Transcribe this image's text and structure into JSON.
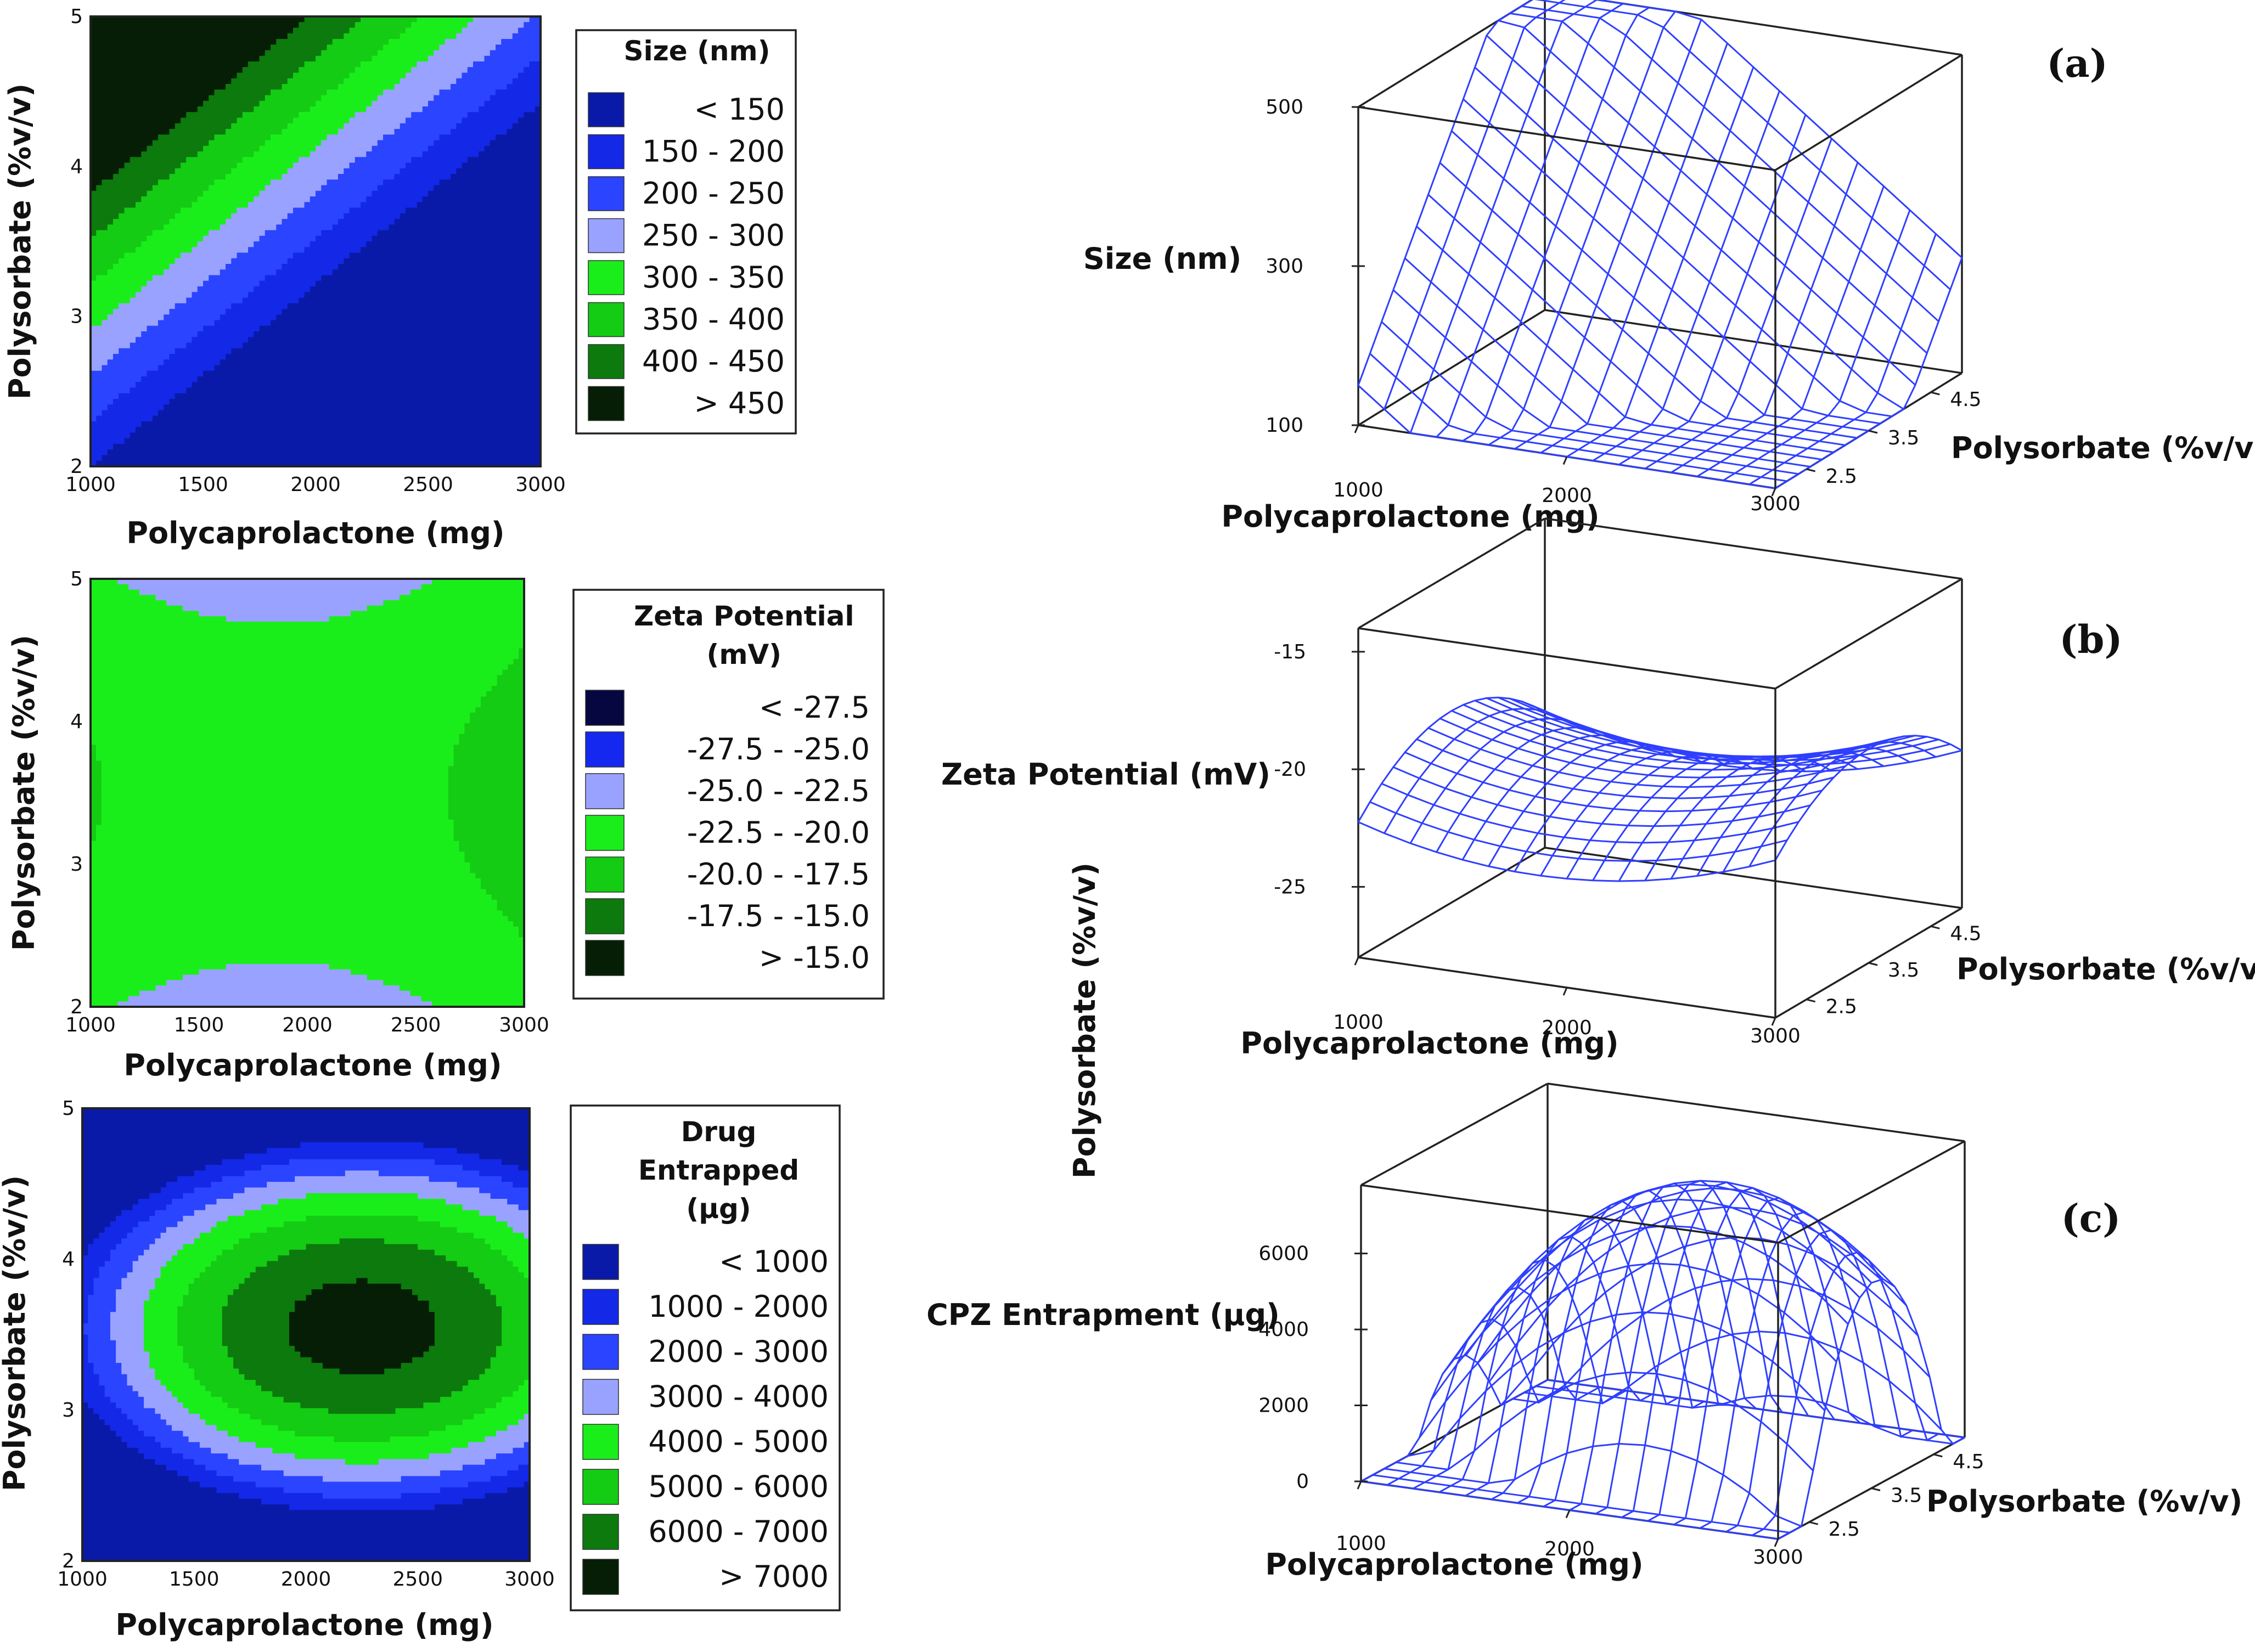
{
  "figure": {
    "shared_ylabel": "Polysorbate (%v/v)"
  },
  "chart_data": [
    {
      "id": "a-contour",
      "type": "heatmap",
      "subtype": "contour",
      "xlabel": "Polycaprolactone (mg)",
      "ylabel": "Polysorbate (%v/v)",
      "xlim": [
        1000,
        3000
      ],
      "ylim": [
        2,
        5
      ],
      "xticks": [
        "1000",
        "1500",
        "2000",
        "2500",
        "3000"
      ],
      "yticks": [
        "2",
        "3",
        "4",
        "5"
      ],
      "model": {
        "kind": "linear",
        "intercept": 150,
        "x_coef": -0.2,
        "y_coef": 165,
        "x_center": 1000,
        "y_center": 2
      },
      "legend": {
        "title": [
          "Size (nm)"
        ],
        "entries": [
          {
            "label": "< 150",
            "color": "#0a1aa8"
          },
          {
            "label": "150  -  200",
            "color": "#1428e8"
          },
          {
            "label": "200  -  250",
            "color": "#2a44ff"
          },
          {
            "label": "250  -  300",
            "color": "#9aa2ff"
          },
          {
            "label": "300  -  350",
            "color": "#1aee1a"
          },
          {
            "label": "350  -  400",
            "color": "#14cc14"
          },
          {
            "label": "400  -  450",
            "color": "#0c7a0c"
          },
          {
            "label": "> 450",
            "color": "#051e05"
          }
        ],
        "thresholds": [
          150,
          200,
          250,
          300,
          350,
          400,
          450
        ]
      }
    },
    {
      "id": "b-contour",
      "type": "heatmap",
      "subtype": "contour",
      "xlabel": "Polycaprolactone (mg)",
      "ylabel": "Polysorbate (%v/v)",
      "xlim": [
        1000,
        3000
      ],
      "ylim": [
        2,
        5
      ],
      "xticks": [
        "1000",
        "1500",
        "2000",
        "2500",
        "3000"
      ],
      "yticks": [
        "2",
        "3",
        "4",
        "5"
      ],
      "model": {
        "kind": "saddle",
        "intercept": -21.0,
        "a": 2.3,
        "b": -2.4,
        "shift": -0.2,
        "x_center": 1800,
        "x_span": 1200,
        "y_center": 3.5,
        "y_span": 1.5
      },
      "legend": {
        "title": [
          "Zeta Potential",
          "(mV)"
        ],
        "entries": [
          {
            "label": "<    -27.5",
            "color": "#060640"
          },
          {
            "label": "-27.5  -  -25.0",
            "color": "#1428f0"
          },
          {
            "label": "-25.0  -  -22.5",
            "color": "#9aa2ff"
          },
          {
            "label": "-22.5  -  -20.0",
            "color": "#1aee1a"
          },
          {
            "label": "-20.0  -  -17.5",
            "color": "#14cc14"
          },
          {
            "label": "-17.5  -  -15.0",
            "color": "#0c7a0c"
          },
          {
            "label": ">    -15.0",
            "color": "#051e05"
          }
        ],
        "thresholds": [
          -27.5,
          -25.0,
          -22.5,
          -20.0,
          -17.5,
          -15.0
        ]
      }
    },
    {
      "id": "c-contour",
      "type": "heatmap",
      "subtype": "contour",
      "xlabel": "Polycaprolactone (mg)",
      "ylabel": "Polysorbate (%v/v)",
      "xlim": [
        1000,
        3000
      ],
      "ylim": [
        2,
        5
      ],
      "xticks": [
        "1000",
        "1500",
        "2000",
        "2500",
        "3000"
      ],
      "yticks": [
        "2",
        "3",
        "4",
        "5"
      ],
      "model": {
        "kind": "dome",
        "peak": 7400,
        "x_center": 2250,
        "x_scale": 2150,
        "y_center": 3.55,
        "y_scale": 2.05
      },
      "legend": {
        "title": [
          "Drug",
          "Entrapped",
          "(µg)"
        ],
        "entries": [
          {
            "label": "<  1000",
            "color": "#0a1aa8"
          },
          {
            "label": "1000   -  2000",
            "color": "#1428e8"
          },
          {
            "label": "2000   -  3000",
            "color": "#2a44ff"
          },
          {
            "label": "3000   -  4000",
            "color": "#9aa2ff"
          },
          {
            "label": "4000   -  5000",
            "color": "#1aee1a"
          },
          {
            "label": "5000   -  6000",
            "color": "#14cc14"
          },
          {
            "label": "6000   -  7000",
            "color": "#0c7a0c"
          },
          {
            "label": ">  7000",
            "color": "#051e05"
          }
        ],
        "thresholds": [
          1000,
          2000,
          3000,
          4000,
          5000,
          6000,
          7000
        ]
      }
    },
    {
      "id": "a-surface",
      "type": "surface",
      "panel_label": "(a)",
      "zlabel": "Size (nm)",
      "xlabel": "Polycaprolactone (mg)",
      "ylabel": "Polysorbate (%v/v)",
      "xticks": [
        "1000",
        "2000",
        "3000"
      ],
      "yticks": [
        "2.5",
        "3.5",
        "4.5"
      ],
      "zticks": [
        "100",
        "300",
        "500"
      ],
      "zlim": [
        100,
        500
      ],
      "model": {
        "kind": "linear",
        "intercept": 150,
        "x_coef": -0.2,
        "y_coef": 165,
        "x_center": 1000,
        "y_center": 2
      }
    },
    {
      "id": "b-surface",
      "type": "surface",
      "panel_label": "(b)",
      "zlabel": "Zeta Potential (mV)",
      "xlabel": "Polycaprolactone (mg)",
      "ylabel": "Polysorbate (%v/v)",
      "xticks": [
        "1000",
        "2000",
        "3000"
      ],
      "yticks": [
        "2.5",
        "3.5",
        "4.5"
      ],
      "zticks": [
        "-25",
        "-20",
        "-15"
      ],
      "zlim": [
        -28,
        -14
      ],
      "model": {
        "kind": "saddle",
        "intercept": -21.0,
        "a": 2.3,
        "b": -2.4,
        "shift": -0.2,
        "x_center": 1800,
        "x_span": 1200,
        "y_center": 3.5,
        "y_span": 1.5
      }
    },
    {
      "id": "c-surface",
      "type": "surface",
      "panel_label": "(c)",
      "zlabel": "CPZ Entrapment (µg)",
      "xlabel": "Polycaprolactone (mg)",
      "ylabel": "Polysorbate (%v/v)",
      "xticks": [
        "1000",
        "2000",
        "3000"
      ],
      "yticks": [
        "2.5",
        "3.5",
        "4.5"
      ],
      "zticks": [
        "0",
        "2000",
        "4000",
        "6000"
      ],
      "zlim": [
        0,
        7800
      ],
      "model": {
        "kind": "dome",
        "peak": 7400,
        "x_center": 2250,
        "x_scale": 2150,
        "y_center": 3.55,
        "y_scale": 2.05
      }
    }
  ]
}
